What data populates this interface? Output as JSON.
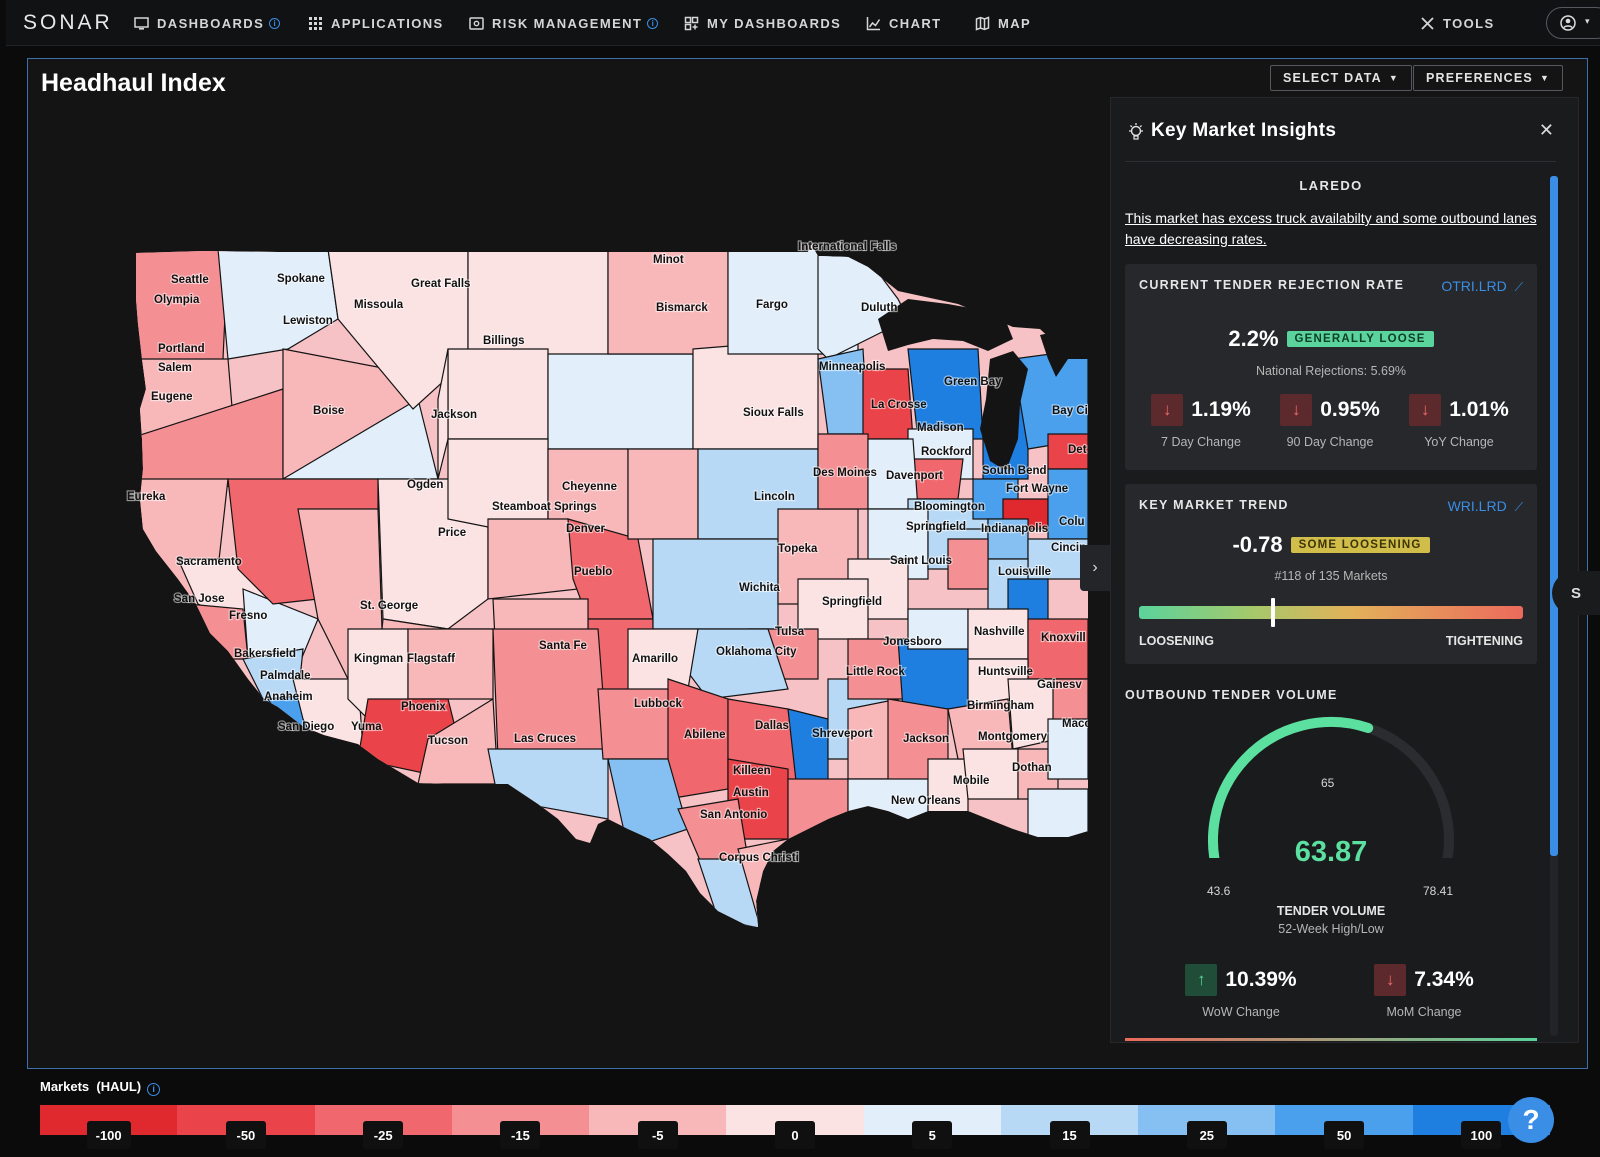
{
  "nav": {
    "logo": "SONAR",
    "items": [
      {
        "label": "DASHBOARDS",
        "icon": "monitor-icon",
        "info": true
      },
      {
        "label": "APPLICATIONS",
        "icon": "grid-icon",
        "info": false
      },
      {
        "label": "RISK MANAGEMENT",
        "icon": "risk-icon",
        "info": true
      },
      {
        "label": "MY DASHBOARDS",
        "icon": "dashboard-icon",
        "info": false
      },
      {
        "label": "CHART",
        "icon": "chart-icon",
        "info": false
      },
      {
        "label": "MAP",
        "icon": "map-icon",
        "info": false
      },
      {
        "label": "TOOLS",
        "icon": "tools-icon",
        "info": false
      }
    ]
  },
  "page": {
    "title": "Headhaul Index",
    "select_data_label": "SELECT DATA",
    "preferences_label": "PREFERENCES"
  },
  "map": {
    "cities": [
      "Seattle",
      "Olympia",
      "Portland",
      "Salem",
      "Eugene",
      "Eureka",
      "Sacramento",
      "San Jose",
      "Fresno",
      "Bakersfield",
      "Palmdale",
      "Anaheim",
      "San Diego",
      "Yuma",
      "Spokane",
      "Lewiston",
      "Boise",
      "Missoula",
      "Great Falls",
      "Billings",
      "Jackson",
      "Ogden",
      "Price",
      "St. George",
      "Kingman",
      "Flagstaff",
      "Phoenix",
      "Tucson",
      "Las Cruces",
      "Santa Fe",
      "Amarillo",
      "Lubbock",
      "Abilene",
      "Dallas",
      "Killeen",
      "Austin",
      "San Antonio",
      "Corpus Christi",
      "Shreveport",
      "Oklahoma City",
      "Tulsa",
      "Wichita",
      "Topeka",
      "Springfield",
      "Lincoln",
      "Denver",
      "Pueblo",
      "Cheyenne",
      "Steamboat Springs",
      "Minot",
      "Bismarck",
      "Fargo",
      "Sioux Falls",
      "International Falls",
      "Duluth",
      "Minneapolis",
      "La Crosse",
      "Green Bay",
      "Madison",
      "Rockford",
      "Des Moines",
      "Davenport",
      "Bloomington",
      "Springfield",
      "Saint Louis",
      "Indianapolis",
      "South Bend",
      "Fort Wayne",
      "Bay City",
      "Louisville",
      "Cincin",
      "Nashville",
      "Knoxvill",
      "Jonesboro",
      "Little Rock",
      "Huntsville",
      "Birmingham",
      "Jackson",
      "Montgomery",
      "Gainesv",
      "Macon",
      "Dothan",
      "Mobile",
      "New Orleans",
      "Det",
      "Colu"
    ]
  },
  "insights": {
    "title": "Key Market Insights",
    "market": "LAREDO",
    "summary": "This market has excess truck availabilty and some outbound lanes have decreasing rates.",
    "otri": {
      "title": "CURRENT TENDER REJECTION RATE",
      "ticker": "OTRI.LRD",
      "value": "2.2%",
      "badge": "GENERALLY LOOSE",
      "national": "National Rejections: 5.69%",
      "changes": [
        {
          "value": "1.19%",
          "label": "7 Day Change",
          "dir": "down"
        },
        {
          "value": "0.95%",
          "label": "90 Day Change",
          "dir": "down"
        },
        {
          "value": "1.01%",
          "label": "YoY Change",
          "dir": "down"
        }
      ]
    },
    "trend": {
      "title": "KEY MARKET TREND",
      "ticker": "WRI.LRD",
      "value": "-0.78",
      "badge": "SOME LOOSENING",
      "rank": "#118 of 135 Markets",
      "left_label": "LOOSENING",
      "right_label": "TIGHTENING",
      "position": 0.35
    },
    "volume": {
      "title": "OUTBOUND TENDER VOLUME",
      "value": "63.87",
      "min": "43.6",
      "max": "78.41",
      "mark": "65",
      "min_num": 43.6,
      "max_num": 78.41,
      "value_num": 63.87,
      "label": "TENDER VOLUME",
      "sublabel": "52-Week High/Low",
      "changes": [
        {
          "value": "10.39%",
          "label": "WoW Change",
          "dir": "up"
        },
        {
          "value": "7.34%",
          "label": "MoM Change",
          "dir": "down"
        }
      ]
    }
  },
  "legend": {
    "title": "Markets  (HAUL)",
    "stops": [
      {
        "label": "-100",
        "color": "#e0282f"
      },
      {
        "label": "-50",
        "color": "#ea434a"
      },
      {
        "label": "-25",
        "color": "#f0686d"
      },
      {
        "label": "-15",
        "color": "#f48f93"
      },
      {
        "label": "-5",
        "color": "#f8b8ba"
      },
      {
        "label": "0",
        "color": "#fbe2e3"
      },
      {
        "label": "5",
        "color": "#e2eefa"
      },
      {
        "label": "15",
        "color": "#b8d9f6"
      },
      {
        "label": "25",
        "color": "#86c0f2"
      },
      {
        "label": "50",
        "color": "#4aa0ec"
      },
      {
        "label": "100",
        "color": "#1f7fe0"
      }
    ]
  },
  "side_tab": "S",
  "help": "?"
}
